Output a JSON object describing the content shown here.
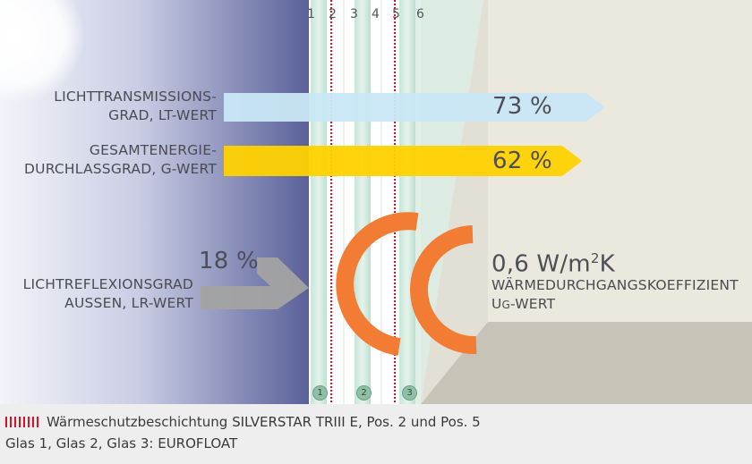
{
  "pane_numbers": [
    "1",
    "2",
    "3",
    "4",
    "5",
    "6"
  ],
  "transmission": {
    "line1": "LICHTTRANSMISSIONS-",
    "line2": "GRAD, LT-WERT",
    "value": "73 %"
  },
  "energy": {
    "line1": "GESAMTENERGIE-",
    "line2": "DURCHLASSGRAD, G-WERT",
    "value": "62 %"
  },
  "reflection": {
    "value": "18 %",
    "line1": "LICHTREFLEXIONSGRAD",
    "line2": "AUSSEN, LR-WERT"
  },
  "thermal": {
    "value": "0,6 W/m",
    "exp": "2",
    "unit": "K",
    "line1": "WÄRMEDURCHGANGSKOEFFIZIENT",
    "line2_main": "U",
    "line2_sub": "G",
    "line2_rest": "-WERT"
  },
  "glass_badges": [
    "1",
    "2",
    "3"
  ],
  "legend": {
    "line1": "Wärmeschutzbeschichtung SILVERSTAR TRIII E, Pos. 2 und Pos. 5",
    "line2": "Glas 1, Glas 2, Glas 3: EUROFLOAT"
  },
  "colors": {
    "sky_dark": "#5a6199",
    "transmission_arrow": "#c9e7f6",
    "energy_arrow": "#ffd200",
    "reflection_arrow": "#a3a3a3",
    "heat_arc": "#f27c34",
    "coating": "#d8102a",
    "room_wall": "#ebe8de",
    "room_floor": "#c7c3b6"
  }
}
